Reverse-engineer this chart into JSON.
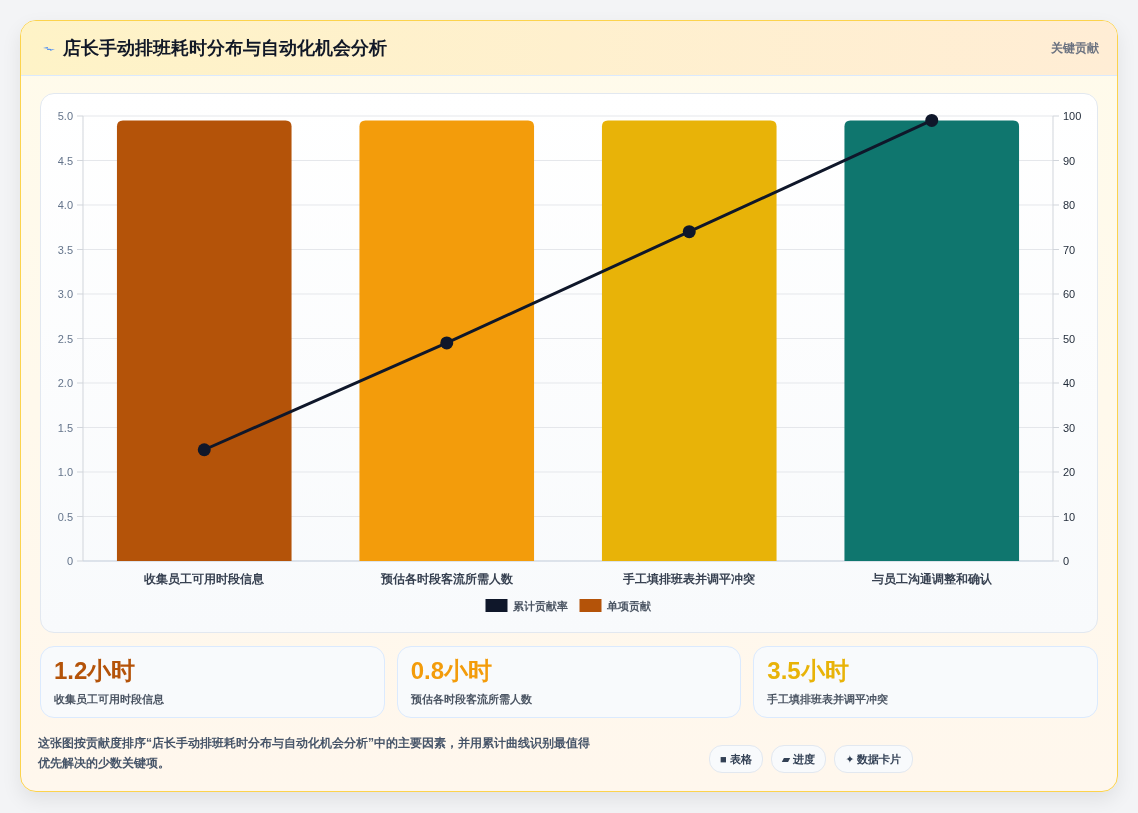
{
  "chart_data": [
    {
      "type": "bar",
      "title": "店长手动排班耗时分布与自动化机会分析",
      "annotations": [
        "关键贡献"
      ],
      "categories": [
        "收集员工可用时段信息",
        "预估各时段客流所需人数",
        "手工填排班表并调平冲突",
        "与员工沟通调整和确认"
      ],
      "series": [
        {
          "name": "累计贡献率",
          "type": "line",
          "axis": "y2",
          "color": "#0f172a",
          "values": [
            25,
            49,
            74,
            99
          ]
        },
        {
          "name": "单项贡献",
          "type": "bar",
          "colors": [
            "#b45309",
            "#f39c0b",
            "#e8b308",
            "#0f766e"
          ],
          "values": [
            4.95,
            4.95,
            4.95,
            4.95
          ]
        }
      ],
      "ylim": [
        0,
        5
      ],
      "yticks": [
        0,
        0.5,
        {
          "value": 1,
          "label": "1.0"
        },
        1.5,
        {
          "value": 2,
          "label": "2.0"
        },
        2.5,
        {
          "value": 3,
          "label": "3.0"
        },
        3.5,
        {
          "value": 4,
          "label": "4.0"
        },
        4.5,
        {
          "value": 5,
          "label": "5.0"
        }
      ],
      "y2lim": [
        0,
        100
      ],
      "y2ticks": [
        0,
        10,
        20,
        30,
        40,
        50,
        60,
        70,
        80,
        90,
        100
      ],
      "grid": "y",
      "legend": "bottom",
      "marker": "circle"
    },
    {
      "type": "other",
      "title": "1.2小时",
      "subtitle": "收集员工可用时段信息",
      "color": "#b45309"
    },
    {
      "type": "other",
      "title": "0.8小时",
      "subtitle": "预估各时段客流所需人数",
      "color": "#f39c0b"
    },
    {
      "type": "other",
      "title": "3.5小时",
      "subtitle": "手工填排班表并调平冲突",
      "color": "#e8b308"
    },
    {
      "type": "other",
      "annotations": [
        "这张图按贡献度排序“店长手动排班耗时分布与自动化机会分析”中的主要因素，并用累计曲线识别最值得优先解决的少数关键项。",
        "■ 表格",
        "▰ 进度",
        "✦ 数据卡片"
      ]
    }
  ]
}
